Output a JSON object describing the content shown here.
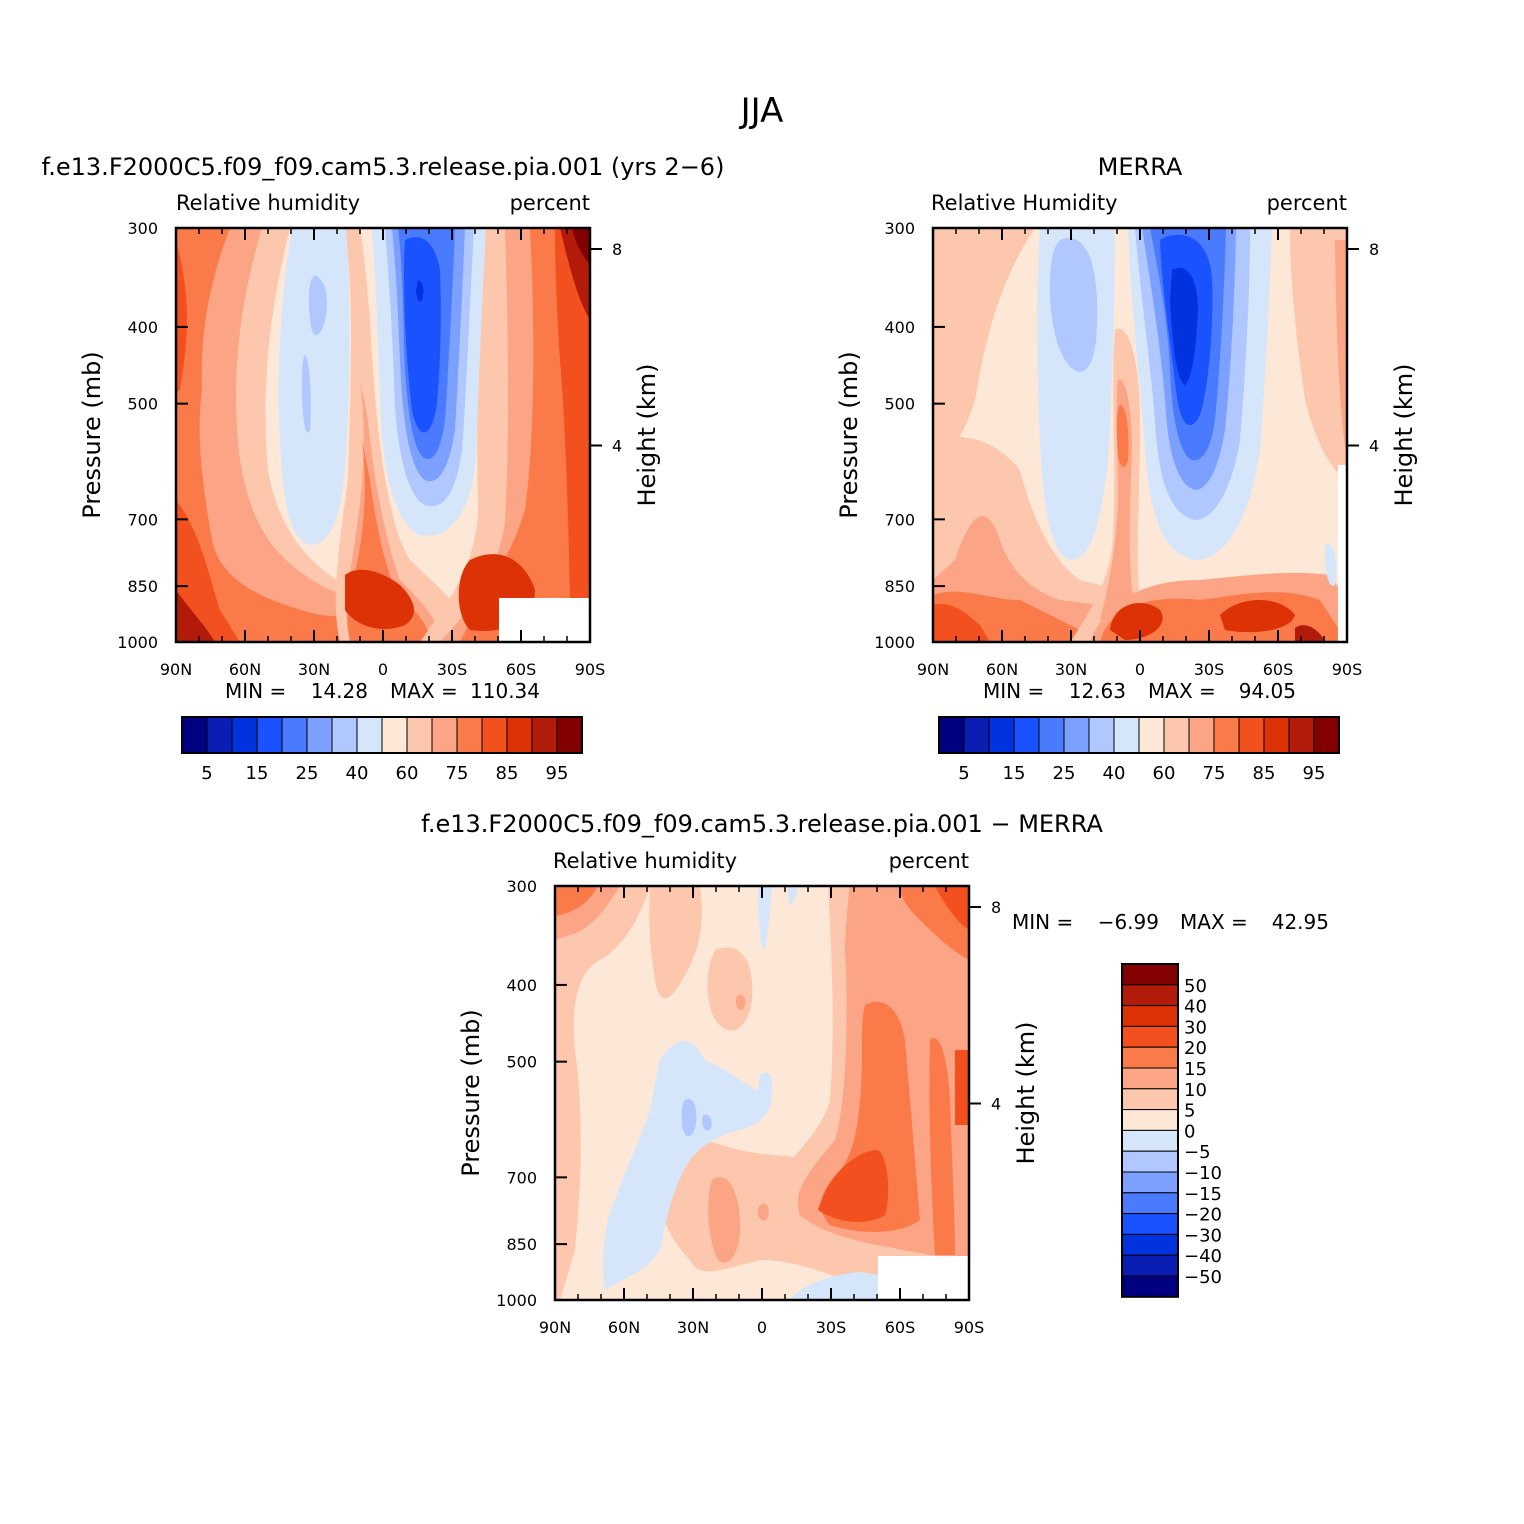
{
  "figure_title": "JJA",
  "colors": {
    "abs": [
      "#000080",
      "#0a1eb4",
      "#0033dd",
      "#1a52ff",
      "#4a7bff",
      "#7ca0ff",
      "#b0c8ff",
      "#d5e6fb",
      "#fde8d8",
      "#fdc7ad",
      "#fca486",
      "#fb7a4a",
      "#f2501e",
      "#dd3205",
      "#b21b0a",
      "#820000"
    ],
    "diff": [
      "#000080",
      "#0a1eb4",
      "#0033dd",
      "#1a52ff",
      "#4a7bff",
      "#7ca0ff",
      "#b0c8ff",
      "#d5e6fb",
      "#fde8d8",
      "#fdc7ad",
      "#fca486",
      "#fb7a4a",
      "#f2501e",
      "#dd3205",
      "#b21b0a",
      "#820000"
    ]
  },
  "chart_data": [
    {
      "type": "contour",
      "title": "f.e13.F2000C5.f09_f09.cam5.3.release.pia.001 (yrs 2−6)",
      "left_label": "Relative humidity",
      "right_label": "percent",
      "xlabel": "",
      "ylabel": "Pressure (mb)",
      "ylabel_right": "Height (km)",
      "xticks": [
        "90N",
        "60N",
        "30N",
        "0",
        "30S",
        "60S",
        "90S"
      ],
      "yticks": [
        "300",
        "400",
        "500",
        "700",
        "850",
        "1000"
      ],
      "yticks_right": [
        "8",
        "4"
      ],
      "min_label": "MIN =",
      "min_value": "14.28",
      "max_label": "MAX =",
      "max_value": "110.34",
      "colorbar_labels": [
        "5",
        "15",
        "25",
        "40",
        "60",
        "75",
        "85",
        "95"
      ],
      "levels": [
        5,
        10,
        15,
        20,
        25,
        30,
        40,
        50,
        60,
        70,
        75,
        80,
        85,
        90,
        95
      ]
    },
    {
      "type": "contour",
      "title": "MERRA",
      "left_label": "Relative Humidity",
      "right_label": "percent",
      "xlabel": "",
      "ylabel": "Pressure (mb)",
      "ylabel_right": "Height (km)",
      "xticks": [
        "90N",
        "60N",
        "30N",
        "0",
        "30S",
        "60S",
        "90S"
      ],
      "yticks": [
        "300",
        "400",
        "500",
        "700",
        "850",
        "1000"
      ],
      "yticks_right": [
        "8",
        "4"
      ],
      "min_label": "MIN =",
      "min_value": "12.63",
      "max_label": "MAX =",
      "max_value": "94.05",
      "colorbar_labels": [
        "5",
        "15",
        "25",
        "40",
        "60",
        "75",
        "85",
        "95"
      ],
      "levels": [
        5,
        10,
        15,
        20,
        25,
        30,
        40,
        50,
        60,
        70,
        75,
        80,
        85,
        90,
        95
      ]
    },
    {
      "type": "contour",
      "title": "f.e13.F2000C5.f09_f09.cam5.3.release.pia.001 − MERRA",
      "left_label": "Relative humidity",
      "right_label": "percent",
      "xlabel": "",
      "ylabel": "Pressure (mb)",
      "ylabel_right": "Height (km)",
      "xticks": [
        "90N",
        "60N",
        "30N",
        "0",
        "30S",
        "60S",
        "90S"
      ],
      "yticks": [
        "300",
        "400",
        "500",
        "700",
        "850",
        "1000"
      ],
      "yticks_right": [
        "8",
        "4"
      ],
      "min_label": "MIN =",
      "min_value": "−6.99",
      "max_label": "MAX =",
      "max_value": "42.95",
      "colorbar_labels": [
        "50",
        "40",
        "30",
        "20",
        "15",
        "10",
        "5",
        "0",
        "−5",
        "−10",
        "−15",
        "−20",
        "−30",
        "−40",
        "−50"
      ],
      "levels": [
        -50,
        -40,
        -30,
        -20,
        -15,
        -10,
        -5,
        0,
        5,
        10,
        15,
        20,
        30,
        40,
        50
      ]
    }
  ]
}
